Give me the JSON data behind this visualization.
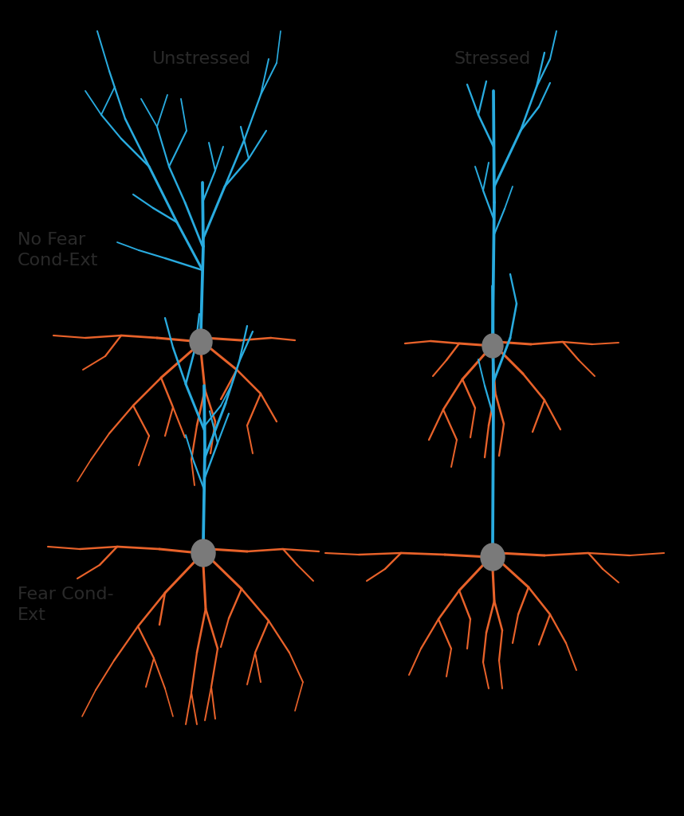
{
  "background_color": "#000000",
  "apical_color": "#29ABDF",
  "basilar_color": "#E8622A",
  "soma_color": "#7a7a7a",
  "title_color": "#2a2a2a",
  "col_labels": [
    "Unstressed",
    "Stressed"
  ],
  "row_labels": [
    "No Fear\nCond-Ext",
    "Fear Cond-\nExt"
  ],
  "label_fontsize": 16,
  "linewidth": 2.2,
  "figsize": [
    8.58,
    10.24
  ],
  "dpi": 100
}
